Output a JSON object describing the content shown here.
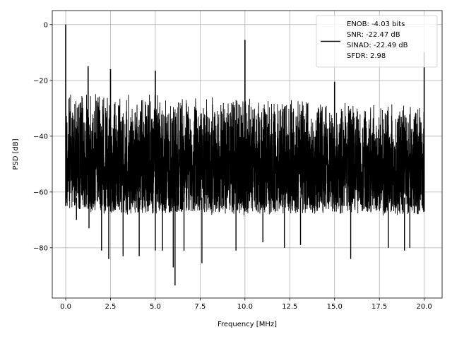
{
  "chart_data": {
    "type": "line",
    "title": "",
    "xlabel": "Frequency [MHz]",
    "ylabel": "PSD [dB]",
    "xlim": [
      -0.75,
      21.0
    ],
    "ylim": [
      -98,
      5
    ],
    "xticks": [
      0.0,
      2.5,
      5.0,
      7.5,
      10.0,
      12.5,
      15.0,
      17.5,
      20.0
    ],
    "xtick_labels": [
      "0.0",
      "2.5",
      "5.0",
      "7.5",
      "10.0",
      "12.5",
      "15.0",
      "17.5",
      "20.0"
    ],
    "yticks": [
      0,
      -20,
      -40,
      -60,
      -80
    ],
    "ytick_labels": [
      "0",
      "−20",
      "−40",
      "−60",
      "−80"
    ],
    "grid": true,
    "legend_position": "top-right",
    "line_color": "#000000",
    "legend_lines": [
      "ENOB: -4.03 bits",
      "SNR: -22.47 dB",
      "SINAD: -22.49 dB",
      "SFDR: 2.98"
    ],
    "noise_floor": {
      "x": [
        0.0,
        2.5,
        5.0,
        7.5,
        10.0,
        12.5,
        15.0,
        17.5,
        20.0
      ],
      "top": [
        -23,
        -24,
        -24.5,
        -25,
        -25.5,
        -26,
        -27,
        -27.5,
        -28
      ],
      "bottom": [
        -65,
        -67,
        -67,
        -67,
        -67,
        -67,
        -67,
        -67,
        -67
      ]
    },
    "peaks": [
      {
        "x": 0.0,
        "y": 0
      },
      {
        "x": 1.25,
        "y": -15
      },
      {
        "x": 2.5,
        "y": -16
      },
      {
        "x": 5.0,
        "y": -16.5
      },
      {
        "x": 10.0,
        "y": -5.5
      },
      {
        "x": 15.0,
        "y": -20.5
      },
      {
        "x": 20.0,
        "y": -10
      }
    ],
    "deep_nulls": [
      {
        "x": 0.6,
        "y": -70
      },
      {
        "x": 1.3,
        "y": -73
      },
      {
        "x": 2.0,
        "y": -81
      },
      {
        "x": 2.4,
        "y": -84
      },
      {
        "x": 3.2,
        "y": -83
      },
      {
        "x": 4.1,
        "y": -83
      },
      {
        "x": 5.0,
        "y": -81
      },
      {
        "x": 5.4,
        "y": -81
      },
      {
        "x": 6.0,
        "y": -87
      },
      {
        "x": 6.1,
        "y": -93.5
      },
      {
        "x": 6.6,
        "y": -81
      },
      {
        "x": 7.6,
        "y": -85.5
      },
      {
        "x": 9.5,
        "y": -81
      },
      {
        "x": 11.0,
        "y": -78
      },
      {
        "x": 12.2,
        "y": -80
      },
      {
        "x": 13.1,
        "y": -79
      },
      {
        "x": 15.9,
        "y": -84
      },
      {
        "x": 18.0,
        "y": -80
      },
      {
        "x": 18.9,
        "y": -81
      },
      {
        "x": 19.2,
        "y": -80
      }
    ]
  }
}
